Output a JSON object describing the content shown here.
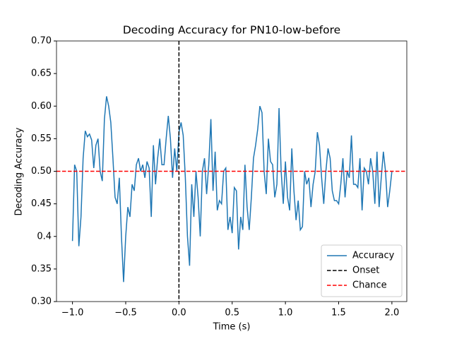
{
  "chart_data": {
    "type": "line",
    "title": "Decoding Accuracy for PN10-low-before",
    "xlabel": "Time (s)",
    "ylabel": "Decoding Accuracy",
    "x": [
      -1.0,
      -0.98,
      -0.96,
      -0.94,
      -0.92,
      -0.9,
      -0.88,
      -0.86,
      -0.84,
      -0.82,
      -0.8,
      -0.78,
      -0.76,
      -0.74,
      -0.72,
      -0.7,
      -0.68,
      -0.66,
      -0.64,
      -0.62,
      -0.6,
      -0.58,
      -0.56,
      -0.54,
      -0.52,
      -0.5,
      -0.48,
      -0.46,
      -0.44,
      -0.42,
      -0.4,
      -0.38,
      -0.36,
      -0.34,
      -0.32,
      -0.3,
      -0.28,
      -0.26,
      -0.24,
      -0.22,
      -0.2,
      -0.18,
      -0.16,
      -0.14,
      -0.12,
      -0.1,
      -0.08,
      -0.06,
      -0.04,
      -0.02,
      0.0,
      0.02,
      0.04,
      0.06,
      0.08,
      0.1,
      0.12,
      0.14,
      0.16,
      0.18,
      0.2,
      0.22,
      0.24,
      0.26,
      0.28,
      0.3,
      0.32,
      0.34,
      0.36,
      0.38,
      0.4,
      0.42,
      0.44,
      0.46,
      0.48,
      0.5,
      0.52,
      0.54,
      0.56,
      0.58,
      0.6,
      0.62,
      0.64,
      0.66,
      0.68,
      0.7,
      0.72,
      0.74,
      0.76,
      0.78,
      0.8,
      0.82,
      0.84,
      0.86,
      0.88,
      0.9,
      0.92,
      0.94,
      0.96,
      0.98,
      1.0,
      1.02,
      1.04,
      1.06,
      1.08,
      1.1,
      1.12,
      1.14,
      1.16,
      1.18,
      1.2,
      1.22,
      1.24,
      1.26,
      1.28,
      1.3,
      1.32,
      1.34,
      1.36,
      1.38,
      1.4,
      1.42,
      1.44,
      1.46,
      1.48,
      1.5,
      1.52,
      1.54,
      1.56,
      1.58,
      1.6,
      1.62,
      1.64,
      1.66,
      1.68,
      1.7,
      1.72,
      1.74,
      1.76,
      1.78,
      1.8,
      1.82,
      1.84,
      1.86,
      1.88,
      1.9,
      1.92,
      1.94,
      1.96,
      1.98,
      2.0
    ],
    "series": [
      {
        "name": "Accuracy",
        "color": "#1f77b4",
        "values": [
          0.393,
          0.51,
          0.5,
          0.385,
          0.43,
          0.52,
          0.562,
          0.553,
          0.557,
          0.548,
          0.505,
          0.54,
          0.55,
          0.5,
          0.485,
          0.58,
          0.615,
          0.6,
          0.575,
          0.52,
          0.46,
          0.45,
          0.49,
          0.4,
          0.33,
          0.4,
          0.445,
          0.43,
          0.48,
          0.47,
          0.51,
          0.52,
          0.5,
          0.51,
          0.49,
          0.515,
          0.505,
          0.43,
          0.54,
          0.48,
          0.52,
          0.55,
          0.51,
          0.51,
          0.55,
          0.585,
          0.55,
          0.49,
          0.535,
          0.5,
          0.56,
          0.575,
          0.555,
          0.49,
          0.4,
          0.355,
          0.48,
          0.43,
          0.5,
          0.46,
          0.4,
          0.5,
          0.52,
          0.465,
          0.51,
          0.58,
          0.47,
          0.53,
          0.44,
          0.455,
          0.45,
          0.5,
          0.505,
          0.41,
          0.43,
          0.405,
          0.475,
          0.47,
          0.38,
          0.43,
          0.41,
          0.51,
          0.445,
          0.41,
          0.46,
          0.52,
          0.54,
          0.565,
          0.6,
          0.59,
          0.5,
          0.465,
          0.55,
          0.515,
          0.51,
          0.46,
          0.48,
          0.597,
          0.5,
          0.45,
          0.515,
          0.46,
          0.44,
          0.535,
          0.47,
          0.425,
          0.455,
          0.41,
          0.415,
          0.5,
          0.48,
          0.49,
          0.445,
          0.48,
          0.5,
          0.56,
          0.54,
          0.49,
          0.45,
          0.5,
          0.535,
          0.52,
          0.47,
          0.455,
          0.455,
          0.45,
          0.48,
          0.52,
          0.46,
          0.5,
          0.49,
          0.555,
          0.48,
          0.48,
          0.475,
          0.52,
          0.44,
          0.505,
          0.5,
          0.48,
          0.52,
          0.5,
          0.45,
          0.53,
          0.445,
          0.49,
          0.53,
          0.5,
          0.445,
          0.47,
          0.5
        ]
      }
    ],
    "reference_lines": [
      {
        "name": "Onset",
        "orientation": "vertical",
        "value": 0,
        "color": "#000000"
      },
      {
        "name": "Chance",
        "orientation": "horizontal",
        "value": 0.5,
        "color": "#ff0000"
      }
    ],
    "xlim": [
      -1.15,
      2.14
    ],
    "ylim": [
      0.3,
      0.7
    ],
    "xticks": [
      {
        "value": -1,
        "label": "−1.0"
      },
      {
        "value": -0.5,
        "label": "−0.5"
      },
      {
        "value": 0,
        "label": "0.0"
      },
      {
        "value": 0.5,
        "label": "0.5"
      },
      {
        "value": 1,
        "label": "1.0"
      },
      {
        "value": 1.5,
        "label": "1.5"
      },
      {
        "value": 2,
        "label": "2.0"
      }
    ],
    "yticks": [
      {
        "value": 0.3,
        "label": "0.30"
      },
      0.35,
      0.4,
      0.45,
      {
        "value": 0.5,
        "label": "0.50"
      },
      0.55,
      {
        "value": 0.6,
        "label": "0.60"
      },
      0.65,
      {
        "value": 0.7,
        "label": "0.70"
      }
    ],
    "legend": "lower right"
  }
}
